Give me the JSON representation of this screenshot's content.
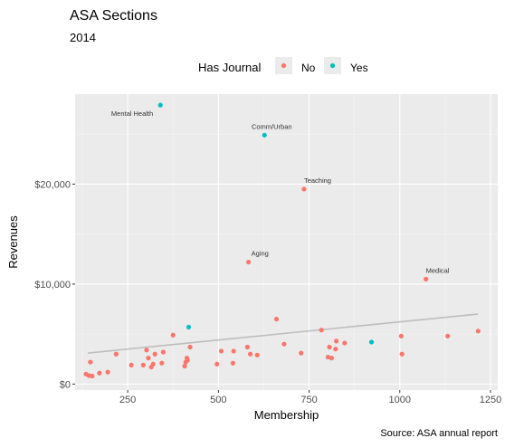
{
  "chart_data": {
    "type": "scatter",
    "title": "ASA Sections",
    "subtitle": "2014",
    "xlabel": "Membership",
    "ylabel": "Revenues",
    "caption": "Source: ASA annual report",
    "xlim": [
      105,
      1270
    ],
    "ylim": [
      -600,
      29000
    ],
    "x_ticks": [
      250,
      500,
      750,
      1000,
      1250
    ],
    "x_tick_labels": [
      "250",
      "500",
      "750",
      "1000",
      "1250"
    ],
    "y_ticks": [
      0,
      10000,
      20000
    ],
    "y_tick_labels": [
      "$0",
      "$10,000",
      "$20,000"
    ],
    "grid": true,
    "legend": {
      "title": "Has Journal",
      "position": "top",
      "entries": [
        {
          "label": "No",
          "color": "#F8766D"
        },
        {
          "label": "Yes",
          "color": "#00BFC4"
        }
      ]
    },
    "trend_line": {
      "color": "#bdbdbd",
      "x": [
        140,
        1215
      ],
      "y": [
        3100,
        7000
      ]
    },
    "series": [
      {
        "name": "No",
        "color": "#F8766D",
        "points": [
          [
            135,
            1000
          ],
          [
            143,
            850
          ],
          [
            147,
            2200
          ],
          [
            152,
            800
          ],
          [
            172,
            1100
          ],
          [
            195,
            1200
          ],
          [
            218,
            3000
          ],
          [
            260,
            1900
          ],
          [
            293,
            1900
          ],
          [
            302,
            3400
          ],
          [
            307,
            2600
          ],
          [
            315,
            1700
          ],
          [
            320,
            2000
          ],
          [
            325,
            3000
          ],
          [
            344,
            2100
          ],
          [
            348,
            3200
          ],
          [
            375,
            4900
          ],
          [
            407,
            1800
          ],
          [
            410,
            2200
          ],
          [
            413,
            2600
          ],
          [
            415,
            2400
          ],
          [
            422,
            3700
          ],
          [
            496,
            2000
          ],
          [
            508,
            3300
          ],
          [
            540,
            2100
          ],
          [
            542,
            3300
          ],
          [
            580,
            3700
          ],
          [
            588,
            3000
          ],
          [
            607,
            2900
          ],
          [
            660,
            6500
          ],
          [
            681,
            4000
          ],
          [
            728,
            3100
          ],
          [
            784,
            5400
          ],
          [
            802,
            2700
          ],
          [
            806,
            3700
          ],
          [
            812,
            2600
          ],
          [
            823,
            3500
          ],
          [
            825,
            4300
          ],
          [
            848,
            4100
          ],
          [
            1004,
            4800
          ],
          [
            1006,
            3000
          ],
          [
            1132,
            4800
          ],
          [
            1216,
            5300
          ],
          [
            583,
            12200
          ],
          [
            736,
            19500
          ],
          [
            1072,
            10500
          ]
        ]
      },
      {
        "name": "Yes",
        "color": "#00BFC4",
        "points": [
          [
            340,
            27900
          ],
          [
            627,
            24900
          ],
          [
            418,
            5700
          ],
          [
            922,
            4200
          ]
        ]
      }
    ],
    "annotations": [
      {
        "label": "Mental Health",
        "x": 340,
        "y": 27900,
        "anchor": "end",
        "dx": -8,
        "dy": 12
      },
      {
        "label": "Comm/Urban",
        "x": 627,
        "y": 24900,
        "anchor": "middle",
        "dx": 8,
        "dy": -7
      },
      {
        "label": "Teaching",
        "x": 736,
        "y": 19500,
        "anchor": "start",
        "dx": 0,
        "dy": -7
      },
      {
        "label": "Aging",
        "x": 583,
        "y": 12200,
        "anchor": "start",
        "dx": 3,
        "dy": -7
      },
      {
        "label": "Medical",
        "x": 1072,
        "y": 10500,
        "anchor": "start",
        "dx": 0,
        "dy": -7
      }
    ]
  }
}
